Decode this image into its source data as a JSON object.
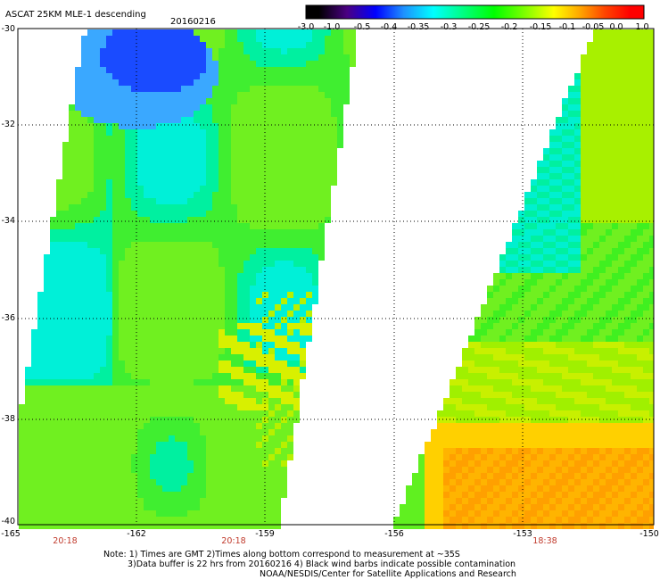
{
  "header": {
    "title": "ASCAT 25KM MLE-1 descending",
    "date": "20160216"
  },
  "colorbar": {
    "labels": [
      "-3.0",
      "-1.0",
      "-0.5",
      "-0.4",
      "-0.35",
      "-0.3",
      "-0.25",
      "-0.2",
      "-0.15",
      "-0.1",
      "-0.05",
      "0.0",
      "1.0"
    ],
    "colors": [
      "#000000",
      "#4b0082",
      "#0000ff",
      "#1e90ff",
      "#00ffff",
      "#00ff7f",
      "#00ff00",
      "#7fff00",
      "#ffff00",
      "#ffa500",
      "#ff4500",
      "#ff0000"
    ]
  },
  "axes": {
    "lat_labels": [
      "-30",
      "-32",
      "-34",
      "-36",
      "-38",
      "-40"
    ],
    "lon_labels": [
      "-165",
      "-162",
      "-159",
      "-156",
      "-153",
      "-150"
    ]
  },
  "pass_times": [
    "20:18",
    "20:18",
    "18:38"
  ],
  "notes": {
    "line1": "Note: 1) Times are GMT 2)Times along bottom correspond to measurement at ~35S",
    "line2": "3)Data buffer is 22 hrs from 20160216 4) Black wind barbs indicate possible contamination",
    "line3": "NOAA/NESDIS/Center for Satellite Applications and Research"
  }
}
